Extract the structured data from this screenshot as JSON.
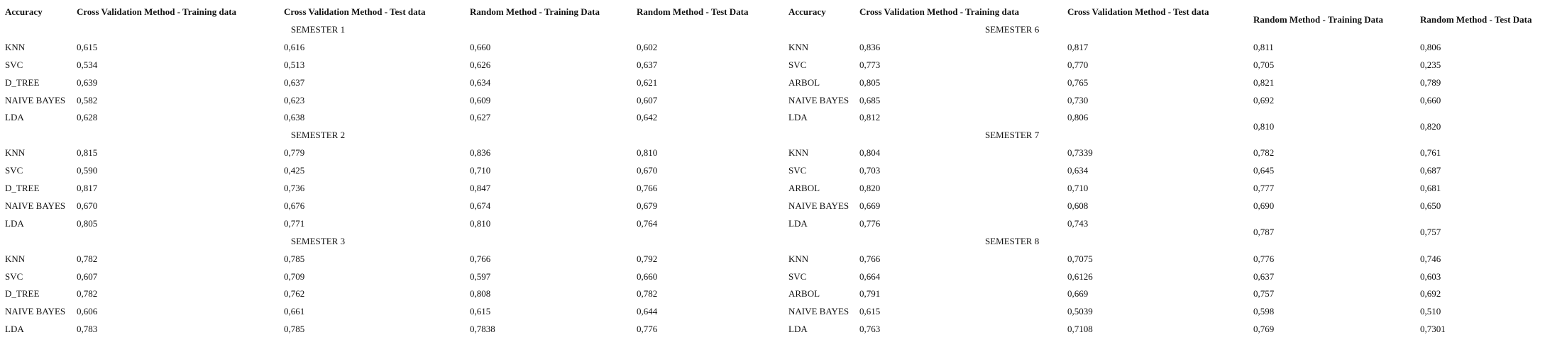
{
  "tables": [
    {
      "headers": [
        "Accuracy",
        "Cross Validation Method - Training data",
        "Cross Validation Method - Test data",
        "Random Method - Training Data",
        "Random Method - Test Data"
      ],
      "sections": [
        {
          "label": "SEMESTER 1",
          "rows": [
            [
              "KNN",
              "0,615",
              "0,616",
              "0,660",
              "0,602"
            ],
            [
              "SVC",
              "0,534",
              "0,513",
              "0,626",
              "0,637"
            ],
            [
              "D_TREE",
              "0,639",
              "0,637",
              "0,634",
              "0,621"
            ],
            [
              "NAIVE BAYES",
              "0,582",
              "0,623",
              "0,609",
              "0,607"
            ],
            [
              "LDA",
              "0,628",
              "0,638",
              "0,627",
              "0,642"
            ]
          ]
        },
        {
          "label": "SEMESTER 2",
          "rows": [
            [
              "KNN",
              "0,815",
              "0,779",
              "0,836",
              "0,810"
            ],
            [
              "SVC",
              "0,590",
              "0,425",
              "0,710",
              "0,670"
            ],
            [
              "D_TREE",
              "0,817",
              "0,736",
              "0,847",
              "0,766"
            ],
            [
              "NAIVE BAYES",
              "0,670",
              "0,676",
              "0,674",
              "0,679"
            ],
            [
              "LDA",
              "0,805",
              "0,771",
              "0,810",
              "0,764"
            ]
          ]
        },
        {
          "label": "SEMESTER 3",
          "rows": [
            [
              "KNN",
              "0,782",
              "0,785",
              "0,766",
              "0,792"
            ],
            [
              "SVC",
              "0,607",
              "0,709",
              "0,597",
              "0,660"
            ],
            [
              "D_TREE",
              "0,782",
              "0,762",
              "0,808",
              "0,782"
            ],
            [
              "NAIVE BAYES",
              "0,606",
              "0,661",
              "0,615",
              "0,644"
            ],
            [
              "LDA",
              "0,783",
              "0,785",
              "0,7838",
              "0,776"
            ]
          ]
        }
      ]
    },
    {
      "headers": [
        "Accuracy",
        "Cross Validation Method - Training data",
        "Cross Validation Method - Test data",
        "Random Method - Training Data",
        "Random Method - Test Data"
      ],
      "sections": [
        {
          "label": "SEMESTER 6",
          "rows": [
            [
              "KNN",
              "0,836",
              "0,817",
              "0,811",
              "0,806"
            ],
            [
              "SVC",
              "0,773",
              "0,770",
              "0,705",
              "0,235"
            ],
            [
              "ARBOL",
              "0,805",
              "0,765",
              "0,821",
              "0,789"
            ],
            [
              "NAIVE BAYES",
              "0,685",
              "0,730",
              "0,692",
              "0,660"
            ],
            [
              "LDA",
              "0,812",
              "0,806",
              "0,810",
              "0,820"
            ]
          ]
        },
        {
          "label": "SEMESTER 7",
          "rows": [
            [
              "KNN",
              "0,804",
              "0,7339",
              "0,782",
              "0,761"
            ],
            [
              "SVC",
              "0,703",
              "0,634",
              "0,645",
              "0,687"
            ],
            [
              "ARBOL",
              "0,820",
              "0,710",
              "0,777",
              "0,681"
            ],
            [
              "NAIVE BAYES",
              "0,669",
              "0,608",
              "0,690",
              "0,650"
            ],
            [
              "LDA",
              "0,776",
              "0,743",
              "0,787",
              "0,757"
            ]
          ]
        },
        {
          "label": "SEMESTER 8",
          "rows": [
            [
              "KNN",
              "0,766",
              "0,7075",
              "0,776",
              "0,746"
            ],
            [
              "SVC",
              "0,664",
              "0,6126",
              "0,637",
              "0,603"
            ],
            [
              "ARBOL",
              "0,791",
              "0,669",
              "0,757",
              "0,692"
            ],
            [
              "NAIVE BAYES",
              "0,615",
              "0,5039",
              "0,598",
              "0,510"
            ],
            [
              "LDA",
              "0,763",
              "0,7108",
              "0,769",
              "0,7301"
            ]
          ]
        }
      ]
    }
  ]
}
